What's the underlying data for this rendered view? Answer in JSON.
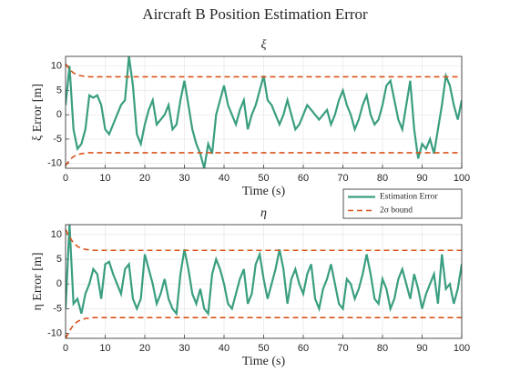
{
  "title": "Aircraft B Position Estimation Error",
  "chart_data": [
    {
      "type": "line",
      "title": "ξ",
      "xlabel": "Time (s)",
      "ylabel": "ξ Error [m]",
      "xlim": [
        0,
        100
      ],
      "xticks": [
        0,
        10,
        20,
        30,
        40,
        50,
        60,
        70,
        80,
        90,
        100
      ],
      "ylim": [
        -11,
        12
      ],
      "yticks": [
        -10,
        -5,
        0,
        5,
        10
      ],
      "grid": true,
      "legend": true,
      "x": [
        0,
        1,
        2,
        3,
        4,
        5,
        6,
        7,
        8,
        9,
        10,
        11,
        12,
        13,
        14,
        15,
        16,
        17,
        18,
        19,
        20,
        21,
        22,
        23,
        24,
        25,
        26,
        27,
        28,
        29,
        30,
        31,
        32,
        33,
        34,
        35,
        36,
        37,
        38,
        39,
        40,
        41,
        42,
        43,
        44,
        45,
        46,
        47,
        48,
        49,
        50,
        51,
        52,
        53,
        54,
        55,
        56,
        57,
        58,
        59,
        60,
        61,
        62,
        63,
        64,
        65,
        66,
        67,
        68,
        69,
        70,
        71,
        72,
        73,
        74,
        75,
        76,
        77,
        78,
        79,
        80,
        81,
        82,
        83,
        84,
        85,
        86,
        87,
        88,
        89,
        90,
        91,
        92,
        93,
        94,
        95,
        96,
        97,
        98,
        99,
        100
      ],
      "series": [
        {
          "name": "Estimation Error",
          "color": "#3a9e80",
          "style": "solid",
          "values": [
            2,
            10,
            -3,
            -7,
            -6,
            -3,
            4,
            3.5,
            4,
            2,
            -3,
            -4,
            -2,
            0,
            2,
            3,
            12,
            6,
            -4,
            -6,
            -2,
            1,
            3,
            -2,
            -1,
            0,
            2,
            -3,
            -2,
            3,
            7,
            2,
            -3,
            -6,
            -8,
            -11,
            -6,
            -8,
            0,
            3,
            6,
            2,
            0,
            -2,
            1,
            3,
            -3,
            0,
            2,
            5,
            8,
            3,
            2,
            0,
            -2,
            0,
            3,
            0,
            -3,
            -2,
            0,
            2,
            1,
            0,
            -1,
            0,
            1,
            -2,
            0,
            3,
            5,
            2,
            0,
            -3,
            -1,
            2,
            4,
            0,
            -2,
            -1,
            2,
            6,
            7,
            3,
            -1,
            -3,
            2,
            7,
            -3,
            -9,
            -6,
            -7,
            -5,
            -8,
            -3,
            2,
            8,
            6,
            2,
            -1,
            3
          ]
        },
        {
          "name": "2σ bound",
          "color": "#d95319",
          "style": "dashed",
          "values": [
            10.5,
            9.3,
            8.6,
            8.2,
            8.0,
            7.9,
            7.8,
            7.8,
            7.8,
            7.8,
            7.8,
            7.8,
            7.8,
            7.8,
            7.8,
            7.8,
            7.8,
            7.8,
            7.8,
            7.8,
            7.8,
            7.8,
            7.8,
            7.8,
            7.8,
            7.8,
            7.8,
            7.8,
            7.8,
            7.8,
            7.8,
            7.8,
            7.8,
            7.8,
            7.8,
            7.8,
            7.8,
            7.8,
            7.8,
            7.8,
            7.8,
            7.8,
            7.8,
            7.8,
            7.8,
            7.8,
            7.8,
            7.8,
            7.8,
            7.8,
            7.8,
            7.8,
            7.8,
            7.8,
            7.8,
            7.8,
            7.8,
            7.8,
            7.8,
            7.8,
            7.8,
            7.8,
            7.8,
            7.8,
            7.8,
            7.8,
            7.8,
            7.8,
            7.8,
            7.8,
            7.8,
            7.8,
            7.8,
            7.8,
            7.8,
            7.8,
            7.8,
            7.8,
            7.8,
            7.8,
            7.8,
            7.8,
            7.8,
            7.8,
            7.8,
            7.8,
            7.8,
            7.8,
            7.8,
            7.8,
            7.8,
            7.8,
            7.8,
            7.8,
            7.8,
            7.8,
            7.8,
            7.8,
            7.8,
            7.8,
            7.8
          ]
        },
        {
          "color": "#d95319",
          "style": "dashed",
          "values": [
            -10.5,
            -9.3,
            -8.6,
            -8.2,
            -8.0,
            -7.9,
            -7.8,
            -7.8,
            -7.8,
            -7.8,
            -7.8,
            -7.8,
            -7.8,
            -7.8,
            -7.8,
            -7.8,
            -7.8,
            -7.8,
            -7.8,
            -7.8,
            -7.8,
            -7.8,
            -7.8,
            -7.8,
            -7.8,
            -7.8,
            -7.8,
            -7.8,
            -7.8,
            -7.8,
            -7.8,
            -7.8,
            -7.8,
            -7.8,
            -7.8,
            -7.8,
            -7.8,
            -7.8,
            -7.8,
            -7.8,
            -7.8,
            -7.8,
            -7.8,
            -7.8,
            -7.8,
            -7.8,
            -7.8,
            -7.8,
            -7.8,
            -7.8,
            -7.8,
            -7.8,
            -7.8,
            -7.8,
            -7.8,
            -7.8,
            -7.8,
            -7.8,
            -7.8,
            -7.8,
            -7.8,
            -7.8,
            -7.8,
            -7.8,
            -7.8,
            -7.8,
            -7.8,
            -7.8,
            -7.8,
            -7.8,
            -7.8,
            -7.8,
            -7.8,
            -7.8,
            -7.8,
            -7.8,
            -7.8,
            -7.8,
            -7.8,
            -7.8,
            -7.8,
            -7.8,
            -7.8,
            -7.8,
            -7.8,
            -7.8,
            -7.8,
            -7.8,
            -7.8,
            -7.8,
            -7.8,
            -7.8,
            -7.8,
            -7.8,
            -7.8,
            -7.8,
            -7.8,
            -7.8,
            -7.8,
            -7.8,
            -7.8
          ]
        }
      ]
    },
    {
      "type": "line",
      "title": "η",
      "xlabel": "Time (s)",
      "ylabel": "η Error [m]",
      "xlim": [
        0,
        100
      ],
      "xticks": [
        0,
        10,
        20,
        30,
        40,
        50,
        60,
        70,
        80,
        90,
        100
      ],
      "ylim": [
        -11,
        12
      ],
      "yticks": [
        -10,
        -5,
        0,
        5,
        10
      ],
      "grid": true,
      "x": [
        0,
        1,
        2,
        3,
        4,
        5,
        6,
        7,
        8,
        9,
        10,
        11,
        12,
        13,
        14,
        15,
        16,
        17,
        18,
        19,
        20,
        21,
        22,
        23,
        24,
        25,
        26,
        27,
        28,
        29,
        30,
        31,
        32,
        33,
        34,
        35,
        36,
        37,
        38,
        39,
        40,
        41,
        42,
        43,
        44,
        45,
        46,
        47,
        48,
        49,
        50,
        51,
        52,
        53,
        54,
        55,
        56,
        57,
        58,
        59,
        60,
        61,
        62,
        63,
        64,
        65,
        66,
        67,
        68,
        69,
        70,
        71,
        72,
        73,
        74,
        75,
        76,
        77,
        78,
        79,
        80,
        81,
        82,
        83,
        84,
        85,
        86,
        87,
        88,
        89,
        90,
        91,
        92,
        93,
        94,
        95,
        96,
        97,
        98,
        99,
        100
      ],
      "series": [
        {
          "color": "#3a9e80",
          "style": "solid",
          "values": [
            -5,
            12,
            -4,
            -3,
            -6,
            -2,
            0,
            3,
            2,
            -3,
            4,
            4.5,
            2,
            0,
            -2,
            3,
            4,
            -3,
            -5,
            -3,
            6,
            3,
            0,
            -4,
            -2,
            1,
            -3,
            -5,
            -6,
            2,
            7,
            3,
            -2,
            -4,
            -1,
            -5,
            -6,
            2,
            5,
            3,
            0,
            -4,
            -5,
            -2,
            1,
            3,
            -4,
            -2,
            4,
            6,
            1,
            -3,
            0,
            3,
            7,
            3,
            -4,
            1,
            3,
            0,
            -2,
            2,
            4,
            -3,
            -5,
            -1,
            1,
            4,
            0,
            -4,
            -5,
            1,
            0,
            -3,
            -1,
            2,
            6,
            2,
            -3,
            -4,
            1,
            -1,
            -5,
            -3,
            1,
            3,
            0,
            -3,
            2,
            -1,
            -5,
            -2,
            0,
            2,
            -4,
            6,
            -1,
            0,
            -4,
            -1,
            4
          ]
        },
        {
          "color": "#d95319",
          "style": "dashed",
          "values": [
            11,
            9.5,
            8.3,
            7.6,
            7.2,
            7.0,
            6.9,
            6.8,
            6.8,
            6.8,
            6.8,
            6.8,
            6.8,
            6.8,
            6.8,
            6.8,
            6.8,
            6.8,
            6.8,
            6.8,
            6.8,
            6.8,
            6.8,
            6.8,
            6.8,
            6.8,
            6.8,
            6.8,
            6.8,
            6.8,
            6.8,
            6.8,
            6.8,
            6.8,
            6.8,
            6.8,
            6.8,
            6.8,
            6.8,
            6.8,
            6.8,
            6.8,
            6.8,
            6.8,
            6.8,
            6.8,
            6.8,
            6.8,
            6.8,
            6.8,
            6.8,
            6.8,
            6.8,
            6.8,
            6.8,
            6.8,
            6.8,
            6.8,
            6.8,
            6.8,
            6.8,
            6.8,
            6.8,
            6.8,
            6.8,
            6.8,
            6.8,
            6.8,
            6.8,
            6.8,
            6.8,
            6.8,
            6.8,
            6.8,
            6.8,
            6.8,
            6.8,
            6.8,
            6.8,
            6.8,
            6.8,
            6.8,
            6.8,
            6.8,
            6.8,
            6.8,
            6.8,
            6.8,
            6.8,
            6.8,
            6.8,
            6.8,
            6.8,
            6.8,
            6.8,
            6.8,
            6.8,
            6.8,
            6.8,
            6.8,
            6.8
          ]
        },
        {
          "color": "#d95319",
          "style": "dashed",
          "values": [
            -11,
            -9.5,
            -8.3,
            -7.6,
            -7.2,
            -7.0,
            -6.9,
            -6.8,
            -6.8,
            -6.8,
            -6.8,
            -6.8,
            -6.8,
            -6.8,
            -6.8,
            -6.8,
            -6.8,
            -6.8,
            -6.8,
            -6.8,
            -6.8,
            -6.8,
            -6.8,
            -6.8,
            -6.8,
            -6.8,
            -6.8,
            -6.8,
            -6.8,
            -6.8,
            -6.8,
            -6.8,
            -6.8,
            -6.8,
            -6.8,
            -6.8,
            -6.8,
            -6.8,
            -6.8,
            -6.8,
            -6.8,
            -6.8,
            -6.8,
            -6.8,
            -6.8,
            -6.8,
            -6.8,
            -6.8,
            -6.8,
            -6.8,
            -6.8,
            -6.8,
            -6.8,
            -6.8,
            -6.8,
            -6.8,
            -6.8,
            -6.8,
            -6.8,
            -6.8,
            -6.8,
            -6.8,
            -6.8,
            -6.8,
            -6.8,
            -6.8,
            -6.8,
            -6.8,
            -6.8,
            -6.8,
            -6.8,
            -6.8,
            -6.8,
            -6.8,
            -6.8,
            -6.8,
            -6.8,
            -6.8,
            -6.8,
            -6.8,
            -6.8,
            -6.8,
            -6.8,
            -6.8,
            -6.8,
            -6.8,
            -6.8,
            -6.8,
            -6.8,
            -6.8,
            -6.8,
            -6.8,
            -6.8,
            -6.8,
            -6.8,
            -6.8,
            -6.8,
            -6.8,
            -6.8,
            -6.8,
            -6.8
          ]
        }
      ]
    }
  ]
}
